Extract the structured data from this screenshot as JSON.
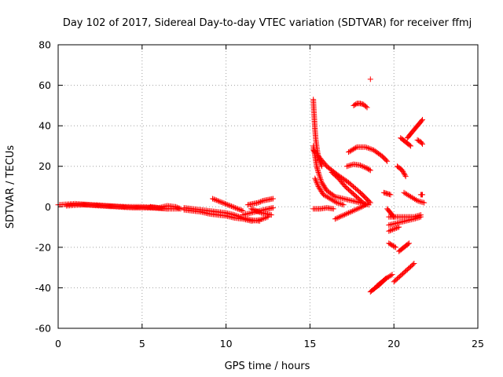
{
  "chart_data": {
    "type": "scatter",
    "title": "Day 102 of 2017, Sidereal Day-to-day VTEC variation (SDTVAR) for receiver ffmj",
    "xlabel": "GPS time / hours",
    "ylabel": "SDTVAR / TECUs",
    "xlim": [
      0,
      25
    ],
    "ylim": [
      -60,
      80
    ],
    "xticks": [
      "0",
      "5",
      "10",
      "15",
      "20",
      "25"
    ],
    "yticks": [
      "-60",
      "-40",
      "-20",
      "0",
      "20",
      "40",
      "60",
      "80"
    ],
    "grid": true,
    "marker": "+",
    "color": "#ff0000",
    "segments": [
      {
        "x": [
          0.0,
          1.0,
          2.0,
          3.0,
          4.0,
          5.0,
          6.0,
          6.5
        ],
        "y": [
          1.0,
          1.5,
          1.0,
          0.5,
          0.0,
          0.0,
          -0.5,
          -1.0
        ]
      },
      {
        "x": [
          0.5,
          1.5,
          2.5,
          3.5,
          4.5,
          5.5,
          6.5,
          7.2
        ],
        "y": [
          0.5,
          1.0,
          0.5,
          0.0,
          -0.5,
          -0.5,
          -1.0,
          -1.0
        ]
      },
      {
        "x": [
          5.5,
          6.0,
          6.5,
          7.0,
          7.3
        ],
        "y": [
          0.0,
          -0.5,
          0.5,
          0.0,
          -1.0
        ]
      },
      {
        "x": [
          7.5,
          8.0,
          8.5,
          9.0,
          9.5,
          10.0,
          10.5,
          11.0,
          11.5,
          12.0
        ],
        "y": [
          -0.5,
          -1.0,
          -1.5,
          -2.0,
          -2.5,
          -3.0,
          -4.0,
          -5.5,
          -6.5,
          -7.0
        ]
      },
      {
        "x": [
          7.5,
          8.0,
          8.5,
          9.0,
          9.5,
          10.0,
          10.5,
          11.0,
          11.5,
          12.0,
          12.5
        ],
        "y": [
          -1.5,
          -2.0,
          -2.5,
          -3.5,
          -4.0,
          -4.5,
          -5.5,
          -6.0,
          -7.0,
          -6.5,
          -5.0
        ]
      },
      {
        "x": [
          9.2,
          9.5,
          9.8,
          10.1,
          10.4,
          10.7,
          11.0
        ],
        "y": [
          4.0,
          3.0,
          2.0,
          1.0,
          0.0,
          -1.0,
          -2.0
        ]
      },
      {
        "x": [
          11.3,
          11.6,
          11.9,
          12.2,
          12.5,
          12.8
        ],
        "y": [
          1.0,
          1.5,
          2.0,
          3.0,
          3.5,
          4.0
        ]
      },
      {
        "x": [
          11.5,
          11.8,
          12.1,
          12.4,
          12.7
        ],
        "y": [
          -1.0,
          -2.0,
          -3.0,
          -3.5,
          -4.0
        ]
      },
      {
        "x": [
          11.0,
          11.5,
          12.0,
          12.5,
          12.8
        ],
        "y": [
          -4.0,
          -3.0,
          -2.0,
          -1.0,
          -0.5
        ]
      },
      {
        "x": [
          15.2,
          15.25,
          15.3,
          15.35,
          15.4,
          15.45,
          15.5,
          15.6,
          15.7
        ],
        "y": [
          53.0,
          45.0,
          38.0,
          33.0,
          30.0,
          27.0,
          25.0,
          22.0,
          20.0
        ]
      },
      {
        "x": [
          15.2,
          15.3,
          15.4,
          15.5,
          15.7,
          16.0,
          16.5,
          17.0,
          17.5,
          18.0,
          18.5
        ],
        "y": [
          30.0,
          25.0,
          20.0,
          17.0,
          12.0,
          8.0,
          5.0,
          4.0,
          3.0,
          2.0,
          1.0
        ]
      },
      {
        "x": [
          15.3,
          15.5,
          15.8,
          16.2,
          16.6,
          17.0
        ],
        "y": [
          14.0,
          10.0,
          6.0,
          4.0,
          2.0,
          1.0
        ]
      },
      {
        "x": [
          15.2,
          15.6,
          16.0,
          16.6,
          17.3,
          18.0,
          18.6
        ],
        "y": [
          28.0,
          24.0,
          20.0,
          16.0,
          12.0,
          7.0,
          2.0
        ]
      },
      {
        "x": [
          16.3,
          16.7,
          17.1,
          17.5,
          17.9,
          18.3
        ],
        "y": [
          17.0,
          14.0,
          10.0,
          7.0,
          4.0,
          1.0
        ]
      },
      {
        "x": [
          15.2,
          15.6,
          16.0,
          16.4
        ],
        "y": [
          -1.0,
          -1.0,
          -0.5,
          -1.0
        ]
      },
      {
        "x": [
          16.5,
          16.9,
          17.3,
          17.7,
          18.1,
          18.4
        ],
        "y": [
          -6.0,
          -4.5,
          -3.0,
          -1.5,
          0.0,
          1.5
        ]
      },
      {
        "x": [
          17.6,
          17.8,
          18.0,
          18.2,
          18.4
        ],
        "y": [
          50.0,
          51.0,
          51.0,
          50.5,
          49.0
        ]
      },
      {
        "x": [
          17.3,
          17.8,
          18.3,
          18.8,
          19.3,
          19.6
        ],
        "y": [
          27.0,
          29.5,
          29.5,
          28.0,
          25.0,
          22.5
        ]
      },
      {
        "x": [
          17.2,
          17.6,
          18.0,
          18.4
        ],
        "y": [
          20.0,
          21.0,
          20.5,
          19.0
        ]
      },
      {
        "x": [
          18.4,
          18.6
        ],
        "y": [
          19.0,
          18.0
        ]
      },
      {
        "x": [
          18.6
        ],
        "y": [
          63.0
        ]
      },
      {
        "x": [
          18.6,
          18.9,
          19.2,
          19.5
        ],
        "y": [
          -42.0,
          -40.0,
          -38.0,
          -35.5
        ]
      },
      {
        "x": [
          19.0,
          19.3,
          19.6,
          19.9
        ],
        "y": [
          -39.0,
          -37.0,
          -35.0,
          -33.5
        ]
      },
      {
        "x": [
          19.4,
          19.6,
          19.8
        ],
        "y": [
          7.0,
          6.5,
          6.0
        ]
      },
      {
        "x": [
          19.6,
          19.8,
          20.0
        ],
        "y": [
          -1.0,
          -3.0,
          -5.0
        ]
      },
      {
        "x": [
          19.7,
          19.9,
          20.1
        ],
        "y": [
          -18.0,
          -19.0,
          -20.0
        ]
      },
      {
        "x": [
          19.7,
          20.0,
          20.3
        ],
        "y": [
          -12.0,
          -11.0,
          -10.0
        ]
      },
      {
        "x": [
          19.7,
          20.2,
          20.7,
          21.2,
          21.6
        ],
        "y": [
          -5.0,
          -5.0,
          -5.0,
          -5.0,
          -4.0
        ]
      },
      {
        "x": [
          19.7,
          20.2,
          20.7,
          21.2,
          21.6
        ],
        "y": [
          -9.0,
          -8.0,
          -7.0,
          -6.0,
          -5.0
        ]
      },
      {
        "x": [
          20.0,
          20.4,
          20.8,
          21.2
        ],
        "y": [
          -37.0,
          -34.0,
          -31.0,
          -28.0
        ]
      },
      {
        "x": [
          20.3,
          20.6,
          20.9
        ],
        "y": [
          -22.0,
          -20.0,
          -18.0
        ]
      },
      {
        "x": [
          20.2,
          20.5,
          20.7
        ],
        "y": [
          20.0,
          18.0,
          15.0
        ]
      },
      {
        "x": [
          20.6,
          21.0,
          21.4,
          21.8
        ],
        "y": [
          7.0,
          5.0,
          3.0,
          2.0
        ]
      },
      {
        "x": [
          20.4,
          20.7,
          21.0
        ],
        "y": [
          34.0,
          32.0,
          30.0
        ]
      },
      {
        "x": [
          20.8,
          21.1,
          21.4,
          21.7
        ],
        "y": [
          34.0,
          37.0,
          40.0,
          43.0
        ]
      },
      {
        "x": [
          21.4,
          21.6,
          21.7
        ],
        "y": [
          33.0,
          32.0,
          31.0
        ]
      },
      {
        "x": [
          21.6,
          21.7
        ],
        "y": [
          6.0,
          6.0
        ]
      }
    ]
  }
}
